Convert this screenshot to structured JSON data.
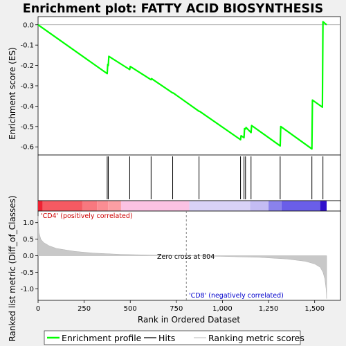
{
  "chart_data": {
    "type": "line",
    "title": "Enrichment plot: FATTY ACID BIOSYNTHESIS",
    "xlabel": "Rank in Ordered Dataset",
    "es_panel": {
      "ylabel": "Enrichment score (ES)",
      "ylim": [
        -0.64,
        0.04
      ],
      "yticks": [
        0.0,
        -0.1,
        -0.2,
        -0.3,
        -0.4,
        -0.5,
        -0.6
      ],
      "ytick_labels": [
        "0.0",
        "-0.1",
        "-0.2",
        "-0.3",
        "-0.4",
        "-0.5",
        "-0.6"
      ],
      "color": "#00ff00",
      "points": [
        [
          0,
          0.0
        ],
        [
          375,
          -0.24
        ],
        [
          378,
          -0.195
        ],
        [
          381,
          -0.2
        ],
        [
          384,
          -0.155
        ],
        [
          497,
          -0.22
        ],
        [
          500,
          -0.205
        ],
        [
          613,
          -0.27
        ],
        [
          616,
          -0.265
        ],
        [
          730,
          -0.335
        ],
        [
          733,
          -0.335
        ],
        [
          873,
          -0.425
        ],
        [
          876,
          -0.425
        ],
        [
          1098,
          -0.565
        ],
        [
          1101,
          -0.545
        ],
        [
          1117,
          -0.555
        ],
        [
          1120,
          -0.51
        ],
        [
          1125,
          -0.512
        ],
        [
          1128,
          -0.505
        ],
        [
          1155,
          -0.53
        ],
        [
          1158,
          -0.495
        ],
        [
          1313,
          -0.595
        ],
        [
          1316,
          -0.5
        ],
        [
          1485,
          -0.61
        ],
        [
          1488,
          -0.37
        ],
        [
          1542,
          -0.405
        ],
        [
          1545,
          0.015
        ],
        [
          1565,
          0.0
        ]
      ]
    },
    "hits": [
      375,
      381,
      497,
      613,
      730,
      873,
      1098,
      1117,
      1125,
      1155,
      1313,
      1485,
      1545
    ],
    "heatmap_colors": [
      {
        "from": 0,
        "to": 25,
        "color": "#ee2233"
      },
      {
        "from": 25,
        "to": 240,
        "color": "#f55a62"
      },
      {
        "from": 240,
        "to": 320,
        "color": "#f8787f"
      },
      {
        "from": 320,
        "to": 380,
        "color": "#fa8d93"
      },
      {
        "from": 380,
        "to": 450,
        "color": "#fb9ea3"
      },
      {
        "from": 450,
        "to": 820,
        "color": "#fbc2e3"
      },
      {
        "from": 820,
        "to": 1150,
        "color": "#d8d2f7"
      },
      {
        "from": 1150,
        "to": 1250,
        "color": "#c4bcf4"
      },
      {
        "from": 1250,
        "to": 1320,
        "color": "#8a82ec"
      },
      {
        "from": 1320,
        "to": 1530,
        "color": "#6a5ee8"
      },
      {
        "from": 1530,
        "to": 1565,
        "color": "#3010cc"
      }
    ],
    "metric_panel": {
      "ylabel": "Ranked list metric (Diff_of_Classes)",
      "ylim": [
        -1.35,
        1.35
      ],
      "yticks": [
        1.0,
        0.5,
        0.0,
        -0.5,
        -1.0
      ],
      "ytick_labels": [
        "1.0",
        "0.5",
        "0.0",
        "-0.5",
        "-1.0"
      ],
      "points": [
        [
          0,
          1.2
        ],
        [
          5,
          0.7
        ],
        [
          15,
          0.5
        ],
        [
          30,
          0.4
        ],
        [
          60,
          0.3
        ],
        [
          100,
          0.22
        ],
        [
          200,
          0.13
        ],
        [
          300,
          0.08
        ],
        [
          450,
          0.04
        ],
        [
          600,
          0.02
        ],
        [
          804,
          0.0
        ],
        [
          1000,
          -0.02
        ],
        [
          1200,
          -0.05
        ],
        [
          1350,
          -0.1
        ],
        [
          1450,
          -0.17
        ],
        [
          1500,
          -0.25
        ],
        [
          1530,
          -0.35
        ],
        [
          1545,
          -0.5
        ],
        [
          1555,
          -0.7
        ],
        [
          1562,
          -1.0
        ],
        [
          1565,
          -1.3
        ]
      ],
      "pos_label": "'CD4' (positively correlated)",
      "neg_label": "'CD8' (negatively correlated)",
      "zero_cross_label": "Zero cross at 804",
      "zero_cross": 804
    },
    "xlim": [
      0,
      1640
    ],
    "xticks": [
      0,
      250,
      500,
      750,
      1000,
      1250,
      1500
    ],
    "xtick_labels": [
      "0",
      "250",
      "500",
      "750",
      "1,000",
      "1,250",
      "1,500"
    ],
    "legend": [
      {
        "label": "Enrichment profile",
        "color": "#00ff00"
      },
      {
        "label": "Hits",
        "color": "#000000"
      },
      {
        "label": "Ranking metric scores",
        "color": "#c8c8c8"
      }
    ]
  }
}
